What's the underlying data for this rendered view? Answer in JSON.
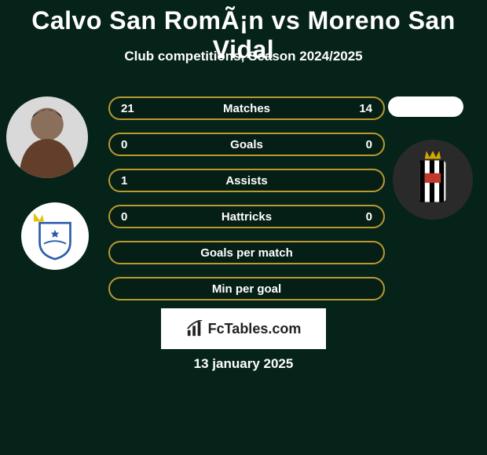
{
  "background_color": "#06231a",
  "title": "Calvo San RomÃ¡n vs Moreno San Vidal",
  "title_color": "#ffffff",
  "title_fontsize": 32,
  "subtitle": "Club competitions, Season 2024/2025",
  "subtitle_color": "#ffffff",
  "subtitle_fontsize": 17,
  "avatar_left": {
    "bg": "#d9d9d9"
  },
  "avatar_right": {
    "bg": "#ffffff"
  },
  "club_left": {
    "bg": "#ffffff",
    "shield_stroke": "#2a5caa",
    "crown_fill": "#e8c200"
  },
  "club_right": {
    "bg": "#2a2a2a",
    "stripe_white": "#ffffff",
    "stripe_black": "#000000",
    "crown_fill": "#d4a800",
    "red_accent": "#c0392b"
  },
  "stats": {
    "border_color": "#b89a2e",
    "text_color": "#ffffff",
    "fontsize": 15,
    "rows": [
      {
        "left": "21",
        "label": "Matches",
        "right": "14"
      },
      {
        "left": "0",
        "label": "Goals",
        "right": "0"
      },
      {
        "left": "1",
        "label": "Assists",
        "right": ""
      },
      {
        "left": "0",
        "label": "Hattricks",
        "right": "0"
      },
      {
        "left": "",
        "label": "Goals per match",
        "right": ""
      },
      {
        "left": "",
        "label": "Min per goal",
        "right": ""
      }
    ]
  },
  "footer": {
    "brand": "FcTables.com",
    "brand_bg": "#ffffff",
    "brand_color": "#222222",
    "date": "13 january 2025",
    "date_color": "#ffffff"
  }
}
